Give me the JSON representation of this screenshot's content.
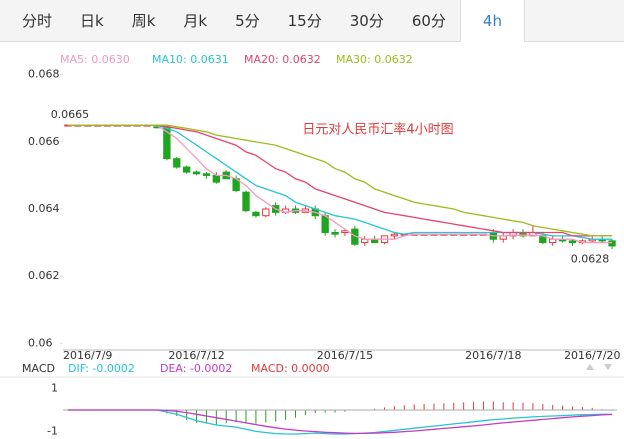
{
  "tabs": [
    "分时",
    "日k",
    "周k",
    "月k",
    "5分",
    "15分",
    "30分",
    "60分",
    "4h"
  ],
  "active_tab": 8,
  "chart_data": {
    "type": "candlestick",
    "title": "日元对人民币汇率4小时图",
    "ylim": [
      0.0598,
      0.0682
    ],
    "yticks": [
      0.068,
      0.066,
      0.064,
      0.062,
      0.06
    ],
    "categories": [
      null,
      null,
      "2016/7/9",
      null,
      null,
      null,
      null,
      null,
      null,
      null,
      null,
      null,
      null,
      "2016/7/12",
      null,
      null,
      null,
      null,
      null,
      null,
      null,
      null,
      null,
      null,
      null,
      null,
      null,
      null,
      "2016/7/15",
      null,
      null,
      null,
      null,
      null,
      null,
      null,
      null,
      null,
      null,
      null,
      null,
      null,
      null,
      "2016/7/18",
      null,
      null,
      null,
      null,
      null,
      null,
      null,
      null,
      null,
      "2016/7/20",
      null,
      null
    ],
    "max_label": 0.0665,
    "min_label": 0.0628,
    "up_color": "#e4393c",
    "down_color": "#1fa51f",
    "candles": {
      "open": [
        0.0665,
        0.0665,
        0.0665,
        0.0665,
        0.0665,
        0.0665,
        0.0665,
        0.0665,
        0.0665,
        0.06645,
        0.06645,
        0.0655,
        0.06525,
        0.0651,
        0.06505,
        0.065,
        0.0651,
        0.0649,
        0.0645,
        0.0639,
        0.0638,
        0.0641,
        0.0639,
        0.064,
        0.0639,
        0.064,
        0.0638,
        0.0633,
        0.0633,
        0.0634,
        0.063,
        0.0631,
        0.063,
        0.0632,
        0.06325,
        0.06325,
        0.06325,
        0.06325,
        0.06325,
        0.06325,
        0.06325,
        0.06325,
        0.06325,
        0.0633,
        0.0631,
        0.0632,
        0.0633,
        0.0632,
        0.0632,
        0.063,
        0.0631,
        0.06305,
        0.063,
        0.06305,
        0.0631,
        0.06305
      ],
      "high": [
        0.0665,
        0.0665,
        0.0665,
        0.0665,
        0.0665,
        0.0665,
        0.0665,
        0.0665,
        0.0665,
        0.0665,
        0.0665,
        0.06555,
        0.0653,
        0.06515,
        0.0651,
        0.0651,
        0.06515,
        0.065,
        0.06455,
        0.06395,
        0.06405,
        0.0642,
        0.0641,
        0.0641,
        0.0641,
        0.0641,
        0.0639,
        0.0634,
        0.0634,
        0.0635,
        0.0632,
        0.0632,
        0.0632,
        0.0633,
        0.06325,
        0.06325,
        0.06325,
        0.06325,
        0.06325,
        0.06325,
        0.06325,
        0.06325,
        0.06325,
        0.0634,
        0.0633,
        0.0634,
        0.0634,
        0.0635,
        0.0633,
        0.0632,
        0.0632,
        0.0631,
        0.0631,
        0.0632,
        0.0632,
        0.0631
      ],
      "low": [
        0.0665,
        0.0665,
        0.0665,
        0.0665,
        0.0665,
        0.0665,
        0.0665,
        0.0665,
        0.0665,
        0.0664,
        0.06545,
        0.0652,
        0.06505,
        0.065,
        0.0649,
        0.06475,
        0.0649,
        0.0645,
        0.0639,
        0.06375,
        0.06375,
        0.0638,
        0.06385,
        0.06385,
        0.0639,
        0.0637,
        0.0632,
        0.06315,
        0.0632,
        0.0629,
        0.0629,
        0.063,
        0.06295,
        0.0631,
        0.06325,
        0.06325,
        0.06325,
        0.06325,
        0.06325,
        0.06325,
        0.06325,
        0.06325,
        0.06325,
        0.063,
        0.063,
        0.0631,
        0.06315,
        0.0632,
        0.06295,
        0.0629,
        0.063,
        0.0629,
        0.06295,
        0.063,
        0.063,
        0.0628
      ],
      "close": [
        0.0665,
        0.0665,
        0.0665,
        0.0665,
        0.0665,
        0.0665,
        0.0665,
        0.0665,
        0.0665,
        0.06643,
        0.0655,
        0.06525,
        0.0651,
        0.06505,
        0.065,
        0.0648,
        0.0649,
        0.06455,
        0.06395,
        0.0638,
        0.064,
        0.0639,
        0.064,
        0.0639,
        0.064,
        0.0638,
        0.0633,
        0.06325,
        0.06335,
        0.06295,
        0.0631,
        0.063,
        0.0632,
        0.06325,
        0.06325,
        0.06325,
        0.06325,
        0.06325,
        0.06325,
        0.06325,
        0.06325,
        0.06325,
        0.06325,
        0.0631,
        0.0632,
        0.0633,
        0.0632,
        0.0633,
        0.063,
        0.0631,
        0.06305,
        0.063,
        0.06305,
        0.0631,
        0.06305,
        0.0629
      ]
    },
    "ma": [
      {
        "label": "MA5: 0.0630",
        "color": "#f29ac0",
        "values": [
          0.0665,
          0.0665,
          0.0665,
          0.0665,
          0.0665,
          0.0665,
          0.0665,
          0.0665,
          0.0665,
          0.06649,
          0.0663,
          0.0661,
          0.0658,
          0.0655,
          0.0652,
          0.065,
          0.065,
          0.0649,
          0.0647,
          0.0644,
          0.0642,
          0.064,
          0.0639,
          0.06395,
          0.06395,
          0.0639,
          0.0638,
          0.0636,
          0.0634,
          0.0632,
          0.0631,
          0.0631,
          0.0631,
          0.0631,
          0.0632,
          0.06325,
          0.06325,
          0.06325,
          0.06325,
          0.06325,
          0.06325,
          0.06325,
          0.06325,
          0.0632,
          0.0632,
          0.06322,
          0.06322,
          0.06322,
          0.0632,
          0.0631,
          0.0631,
          0.0631,
          0.063,
          0.063,
          0.063,
          0.063
        ]
      },
      {
        "label": "MA10: 0.0631",
        "color": "#27c3d6",
        "values": [
          0.0665,
          0.0665,
          0.0665,
          0.0665,
          0.0665,
          0.0665,
          0.0665,
          0.0665,
          0.0665,
          0.0665,
          0.0664,
          0.0663,
          0.0661,
          0.0659,
          0.0657,
          0.0655,
          0.0653,
          0.0651,
          0.0649,
          0.0647,
          0.0646,
          0.0645,
          0.0644,
          0.0642,
          0.0641,
          0.064,
          0.0639,
          0.0638,
          0.06375,
          0.0637,
          0.0636,
          0.0635,
          0.0634,
          0.0633,
          0.06325,
          0.0633,
          0.0633,
          0.0633,
          0.0633,
          0.0633,
          0.0633,
          0.0633,
          0.0633,
          0.0633,
          0.0633,
          0.0633,
          0.0633,
          0.0633,
          0.06325,
          0.0632,
          0.0632,
          0.0632,
          0.06315,
          0.0631,
          0.0631,
          0.0631
        ]
      },
      {
        "label": "MA20: 0.0632",
        "color": "#e8426a",
        "values": [
          0.0665,
          0.0665,
          0.0665,
          0.0665,
          0.0665,
          0.0665,
          0.0665,
          0.0665,
          0.0665,
          0.0665,
          0.06645,
          0.0664,
          0.06635,
          0.0663,
          0.0662,
          0.0661,
          0.066,
          0.0659,
          0.0657,
          0.0656,
          0.0654,
          0.0652,
          0.0651,
          0.0649,
          0.0648,
          0.0646,
          0.0645,
          0.0644,
          0.0643,
          0.0642,
          0.0641,
          0.064,
          0.0639,
          0.06385,
          0.0638,
          0.06375,
          0.0637,
          0.06365,
          0.0636,
          0.06355,
          0.0635,
          0.06345,
          0.0634,
          0.06335,
          0.0633,
          0.0633,
          0.0633,
          0.0633,
          0.0633,
          0.0633,
          0.0633,
          0.0632,
          0.0632,
          0.0632,
          0.0632,
          0.0632
        ]
      },
      {
        "label": "MA30: 0.0632",
        "color": "#9cbc1c",
        "values": [
          0.0665,
          0.0665,
          0.0665,
          0.0665,
          0.0665,
          0.0665,
          0.0665,
          0.0665,
          0.0665,
          0.0665,
          0.0665,
          0.06645,
          0.0664,
          0.06635,
          0.0663,
          0.0662,
          0.06615,
          0.0661,
          0.06605,
          0.066,
          0.06595,
          0.0659,
          0.0658,
          0.0657,
          0.0656,
          0.0655,
          0.0654,
          0.0652,
          0.0651,
          0.0649,
          0.0648,
          0.0646,
          0.0645,
          0.0644,
          0.0643,
          0.0642,
          0.06415,
          0.0641,
          0.06405,
          0.064,
          0.0639,
          0.06385,
          0.0638,
          0.06375,
          0.0637,
          0.06365,
          0.0636,
          0.0635,
          0.06345,
          0.0634,
          0.06335,
          0.0633,
          0.06325,
          0.0632,
          0.0632,
          0.0632
        ]
      }
    ],
    "macd": {
      "title": "MACD",
      "dif_label": "DIF: -0.0002",
      "dea_label": "DEA: -0.0002",
      "macd_label": "MACD: 0.0000",
      "ylim": [
        -1.4,
        1.4
      ],
      "yticks": [
        1,
        -1
      ],
      "dif": {
        "color": "#27c3d6",
        "values": [
          0,
          0,
          0,
          0,
          0,
          0,
          0,
          0,
          0,
          0,
          -0.1,
          -0.2,
          -0.35,
          -0.5,
          -0.6,
          -0.7,
          -0.75,
          -0.8,
          -0.9,
          -1.0,
          -1.05,
          -1.1,
          -1.12,
          -1.12,
          -1.1,
          -1.08,
          -1.1,
          -1.12,
          -1.12,
          -1.1,
          -1.08,
          -1.05,
          -1.0,
          -0.95,
          -0.9,
          -0.85,
          -0.8,
          -0.75,
          -0.7,
          -0.65,
          -0.6,
          -0.55,
          -0.5,
          -0.45,
          -0.42,
          -0.38,
          -0.35,
          -0.32,
          -0.3,
          -0.28,
          -0.26,
          -0.24,
          -0.22,
          -0.21,
          -0.2,
          -0.2
        ]
      },
      "dea": {
        "color": "#c43bc4",
        "values": [
          0,
          0,
          0,
          0,
          0,
          0,
          0,
          0,
          0,
          0,
          -0.02,
          -0.06,
          -0.12,
          -0.2,
          -0.28,
          -0.36,
          -0.44,
          -0.52,
          -0.6,
          -0.68,
          -0.76,
          -0.83,
          -0.89,
          -0.94,
          -0.98,
          -1.01,
          -1.04,
          -1.06,
          -1.08,
          -1.09,
          -1.09,
          -1.08,
          -1.06,
          -1.04,
          -1.01,
          -0.98,
          -0.94,
          -0.9,
          -0.86,
          -0.82,
          -0.78,
          -0.74,
          -0.7,
          -0.65,
          -0.6,
          -0.56,
          -0.52,
          -0.48,
          -0.44,
          -0.4,
          -0.36,
          -0.32,
          -0.29,
          -0.26,
          -0.23,
          -0.21
        ]
      },
      "hist": {
        "up_color": "#e4393c",
        "down_color": "#1fa51f",
        "values": [
          0,
          0,
          0,
          0,
          0,
          0,
          0,
          0,
          0,
          0,
          -0.16,
          -0.28,
          -0.46,
          -0.6,
          -0.64,
          -0.68,
          -0.62,
          -0.56,
          -0.6,
          -0.64,
          -0.58,
          -0.54,
          -0.46,
          -0.36,
          -0.24,
          -0.14,
          -0.12,
          -0.12,
          -0.08,
          -0.02,
          0.02,
          0.06,
          0.12,
          0.18,
          0.22,
          0.26,
          0.28,
          0.3,
          0.32,
          0.34,
          0.36,
          0.38,
          0.4,
          0.4,
          0.36,
          0.36,
          0.34,
          0.32,
          0.28,
          0.24,
          0.2,
          0.16,
          0.14,
          0.1,
          0.04,
          0.02
        ]
      }
    }
  }
}
